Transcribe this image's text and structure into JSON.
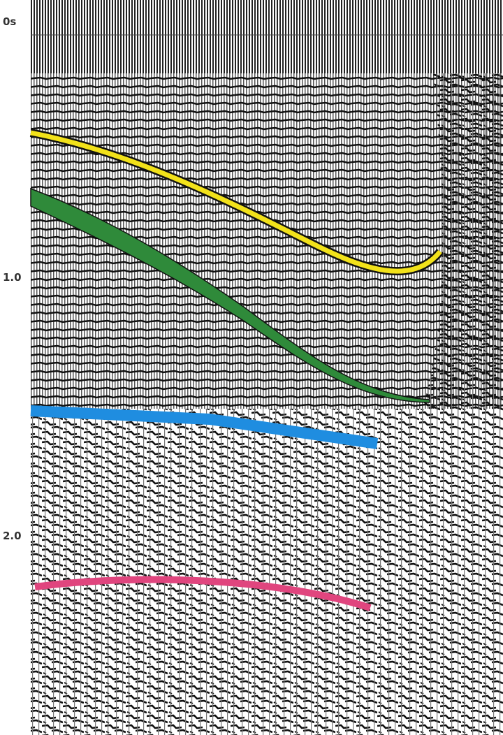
{
  "time_axis": {
    "labels": [
      "0s",
      "1.0",
      "2.0"
    ]
  }
}
